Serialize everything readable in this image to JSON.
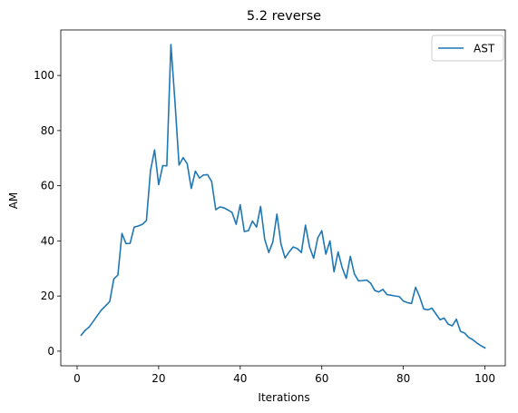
{
  "chart_data": {
    "type": "line",
    "title": "5.2 reverse",
    "xlabel": "Iterations",
    "ylabel": "AM",
    "xlim": [
      -4.0,
      105.0
    ],
    "ylim": [
      -5.3,
      116.5
    ],
    "x_ticks": [
      0,
      20,
      40,
      60,
      80,
      100
    ],
    "y_ticks": [
      0,
      20,
      40,
      60,
      80,
      100
    ],
    "grid": false,
    "legend_position": "top-right",
    "series": [
      {
        "name": "AST",
        "color": "#1f77b4",
        "x": [
          1,
          2,
          3,
          4,
          5,
          6,
          7,
          8,
          9,
          10,
          11,
          12,
          13,
          14,
          15,
          16,
          17,
          18,
          19,
          20,
          21,
          22,
          23,
          24,
          25,
          26,
          27,
          28,
          29,
          30,
          31,
          32,
          33,
          34,
          35,
          36,
          37,
          38,
          39,
          40,
          41,
          42,
          43,
          44,
          45,
          46,
          47,
          48,
          49,
          50,
          51,
          52,
          53,
          54,
          55,
          56,
          57,
          58,
          59,
          60,
          61,
          62,
          63,
          64,
          65,
          66,
          67,
          68,
          69,
          70,
          71,
          72,
          73,
          74,
          75,
          76,
          77,
          78,
          79,
          80,
          81,
          82,
          83,
          84,
          85,
          86,
          87,
          88,
          89,
          90,
          91,
          92,
          93,
          94,
          95,
          96,
          97,
          98,
          99,
          100
        ],
        "y": [
          5.8,
          7.6,
          8.8,
          10.9,
          13.0,
          15.0,
          16.5,
          18.0,
          26.2,
          27.6,
          42.7,
          39.0,
          39.1,
          45.0,
          45.4,
          46.0,
          47.4,
          65.5,
          73.0,
          60.4,
          67.3,
          67.2,
          111.2,
          90.5,
          67.5,
          70.2,
          68.0,
          59.0,
          65.3,
          62.8,
          63.9,
          64.0,
          61.5,
          51.3,
          52.3,
          52.0,
          51.2,
          50.3,
          46.0,
          53.1,
          43.4,
          43.7,
          47.2,
          45.0,
          52.5,
          40.6,
          35.8,
          39.6,
          49.7,
          38.8,
          33.8,
          36.0,
          37.8,
          37.2,
          35.8,
          45.7,
          37.8,
          33.7,
          41.0,
          43.7,
          35.2,
          40.0,
          28.8,
          36.0,
          30.3,
          26.4,
          34.4,
          28.0,
          25.5,
          25.6,
          25.8,
          24.6,
          22.0,
          21.5,
          22.4,
          20.5,
          20.3,
          20.0,
          19.8,
          18.2,
          17.6,
          17.3,
          23.2,
          19.7,
          15.3,
          15.0,
          15.6,
          13.5,
          11.4,
          12.0,
          9.8,
          9.2,
          11.6,
          7.2,
          6.6,
          5.0,
          4.2,
          3.0,
          2.0,
          1.2
        ]
      }
    ]
  }
}
